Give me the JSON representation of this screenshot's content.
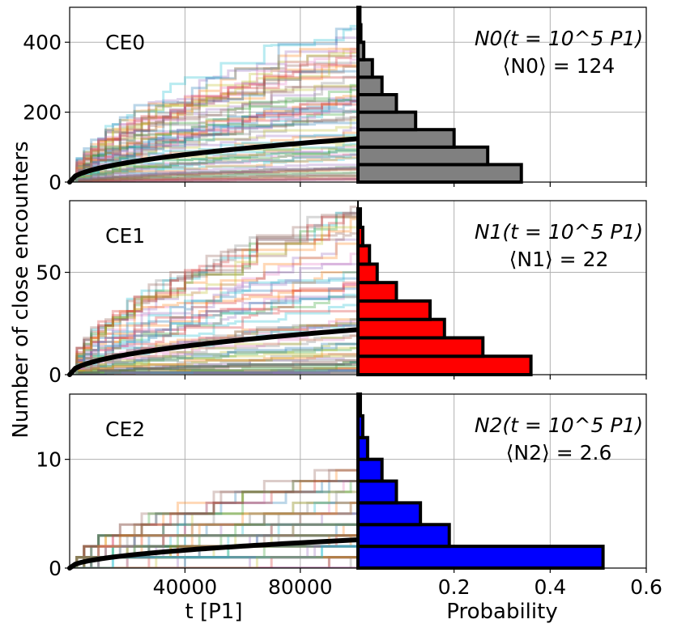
{
  "figure": {
    "ylabel": "Number of close encounters",
    "xlabel_left": "t [P1]",
    "xlabel_right": "Probability"
  },
  "chart_data": [
    {
      "panel": "CE0",
      "type": "line+hist",
      "tag": "CE0",
      "annotation_line1": "N0(t = 10^5 P1)",
      "annotation_line2": "⟨N0⟩ = 124",
      "mean": 124,
      "ylim": [
        0,
        500
      ],
      "yticks": [
        0,
        200,
        400
      ],
      "xlim_time": [
        0,
        100000
      ],
      "xticks_time": [
        40000,
        80000
      ],
      "mean_curve": {
        "t": [
          0,
          10000,
          20000,
          30000,
          40000,
          50000,
          60000,
          70000,
          80000,
          90000,
          100000
        ],
        "N": [
          0,
          39,
          55,
          68,
          78,
          88,
          96,
          104,
          111,
          118,
          124
        ]
      },
      "histogram": {
        "color": "#808080",
        "bin_edges": [
          0,
          50,
          100,
          150,
          200,
          250,
          300,
          350,
          400,
          450,
          500
        ],
        "probability": [
          0.34,
          0.27,
          0.2,
          0.12,
          0.08,
          0.05,
          0.03,
          0.012,
          0.006,
          0.004
        ]
      }
    },
    {
      "panel": "CE1",
      "type": "line+hist",
      "tag": "CE1",
      "annotation_line1": "N1(t = 10^5 P1)",
      "annotation_line2": "⟨N1⟩ = 22",
      "mean": 22,
      "ylim": [
        0,
        85
      ],
      "yticks": [
        0,
        50
      ],
      "xlim_time": [
        0,
        100000
      ],
      "xticks_time": [
        40000,
        80000
      ],
      "mean_curve": {
        "t": [
          0,
          10000,
          20000,
          30000,
          40000,
          50000,
          60000,
          70000,
          80000,
          90000,
          100000
        ],
        "N": [
          0,
          7,
          9.8,
          12,
          13.9,
          15.6,
          17,
          18.4,
          19.7,
          20.9,
          22
        ]
      },
      "histogram": {
        "color": "#ff0000",
        "bin_edges": [
          0,
          9,
          18,
          27,
          36,
          45,
          54,
          63,
          72,
          81
        ],
        "probability": [
          0.36,
          0.26,
          0.18,
          0.15,
          0.08,
          0.04,
          0.024,
          0.01,
          0.005
        ]
      }
    },
    {
      "panel": "CE2",
      "type": "line+hist",
      "tag": "CE2",
      "annotation_line1": "N2(t = 10^5 P1)",
      "annotation_line2": "⟨N2⟩ = 2.6",
      "mean": 2.6,
      "ylim": [
        0,
        16
      ],
      "yticks": [
        0,
        10
      ],
      "xlim_time": [
        0,
        100000
      ],
      "xticks_time": [
        40000,
        80000
      ],
      "xticklabels_time": [
        "40000",
        "80000"
      ],
      "xlim_prob": [
        0,
        0.6
      ],
      "xticks_prob": [
        0.2,
        0.4,
        0.6
      ],
      "xticklabels_prob": [
        "0.2",
        "0.4",
        "0.6"
      ],
      "mean_curve": {
        "t": [
          0,
          10000,
          20000,
          30000,
          40000,
          50000,
          60000,
          70000,
          80000,
          90000,
          100000
        ],
        "N": [
          0,
          0.82,
          1.16,
          1.42,
          1.64,
          1.84,
          2.01,
          2.18,
          2.33,
          2.47,
          2.6
        ]
      },
      "histogram": {
        "color": "#0000ff",
        "bin_edges": [
          0,
          2,
          4,
          6,
          8,
          10,
          12,
          14,
          16
        ],
        "probability": [
          0.51,
          0.19,
          0.13,
          0.08,
          0.05,
          0.02,
          0.01,
          0.005
        ]
      }
    }
  ]
}
